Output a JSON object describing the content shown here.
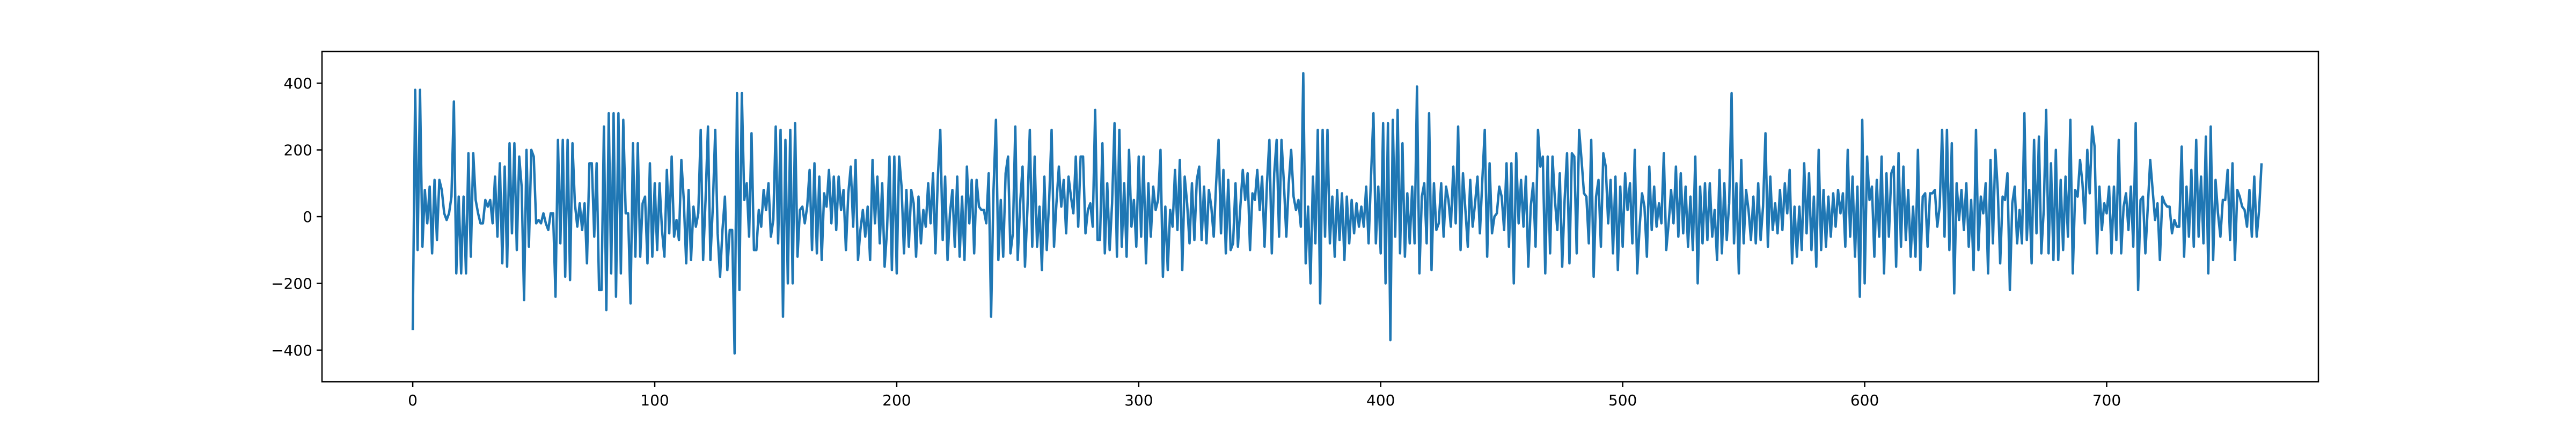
{
  "chart_data": {
    "type": "line",
    "title": "",
    "xlabel": "",
    "ylabel": "",
    "xlim": [
      -37.5,
      787.5
    ],
    "ylim": [
      -495,
      495
    ],
    "x_ticks": [
      0,
      100,
      200,
      300,
      400,
      500,
      600,
      700
    ],
    "y_ticks": [
      -400,
      -200,
      0,
      200,
      400
    ],
    "x_tick_labels": [
      "0",
      "100",
      "200",
      "300",
      "400",
      "500",
      "600",
      "700"
    ],
    "y_tick_labels": [
      "−400",
      "−200",
      "0",
      "200",
      "400"
    ],
    "grid": false,
    "legend": "none",
    "series": [
      {
        "color": "#1f77b4",
        "x_start": 0,
        "x_step": 1,
        "values": [
          -340,
          380,
          -100,
          380,
          -90,
          80,
          -20,
          90,
          -110,
          110,
          -70,
          110,
          80,
          10,
          -10,
          10,
          60,
          345,
          -170,
          60,
          -170,
          60,
          -170,
          190,
          -120,
          190,
          50,
          10,
          -20,
          -20,
          50,
          30,
          50,
          -20,
          120,
          -60,
          160,
          -140,
          150,
          -150,
          220,
          -50,
          220,
          -100,
          180,
          90,
          -250,
          200,
          -90,
          200,
          180,
          -20,
          -10,
          -20,
          10,
          -20,
          -40,
          10,
          10,
          -240,
          230,
          -80,
          230,
          -180,
          230,
          -190,
          220,
          40,
          -30,
          40,
          -40,
          40,
          -140,
          160,
          160,
          -60,
          160,
          -220,
          -220,
          270,
          -280,
          310,
          -170,
          310,
          -240,
          310,
          -170,
          290,
          10,
          10,
          -260,
          220,
          -120,
          220,
          -120,
          40,
          60,
          -140,
          160,
          -120,
          100,
          -100,
          100,
          -40,
          -120,
          140,
          -50,
          180,
          -60,
          -10,
          -70,
          170,
          50,
          -140,
          80,
          -130,
          30,
          -30,
          10,
          260,
          -130,
          50,
          270,
          -130,
          30,
          260,
          -50,
          -180,
          -40,
          60,
          -160,
          -40,
          -40,
          -410,
          370,
          -220,
          370,
          50,
          100,
          -60,
          250,
          -100,
          -100,
          20,
          -30,
          80,
          20,
          100,
          -60,
          -10,
          270,
          -80,
          260,
          -300,
          230,
          -200,
          260,
          -200,
          280,
          -120,
          20,
          30,
          -20,
          30,
          140,
          -100,
          160,
          -110,
          120,
          -130,
          70,
          30,
          140,
          -20,
          120,
          -40,
          120,
          20,
          80,
          -100,
          70,
          150,
          -30,
          170,
          -130,
          -40,
          20,
          -60,
          30,
          -130,
          170,
          -20,
          120,
          -80,
          100,
          -150,
          -40,
          180,
          -160,
          180,
          -170,
          180,
          90,
          -110,
          80,
          -90,
          80,
          40,
          -120,
          60,
          -80,
          20,
          -30,
          100,
          -20,
          130,
          -110,
          120,
          260,
          -70,
          120,
          -130,
          10,
          80,
          -90,
          120,
          -120,
          60,
          -130,
          150,
          -20,
          110,
          -110,
          110,
          30,
          20,
          20,
          -20,
          130,
          -300,
          80,
          290,
          -130,
          50,
          -120,
          130,
          180,
          -110,
          -50,
          270,
          -130,
          40,
          150,
          -150,
          20,
          260,
          -90,
          180,
          -90,
          30,
          -160,
          120,
          -100,
          50,
          260,
          -90,
          40,
          150,
          30,
          110,
          -50,
          120,
          60,
          10,
          180,
          -30,
          180,
          180,
          -50,
          20,
          40,
          -30,
          320,
          -70,
          -70,
          220,
          -110,
          100,
          -100,
          40,
          280,
          -120,
          260,
          -90,
          100,
          -120,
          200,
          -30,
          50,
          -90,
          180,
          -60,
          180,
          -140,
          100,
          -60,
          90,
          20,
          50,
          200,
          -180,
          30,
          -160,
          20,
          -30,
          140,
          -40,
          170,
          -160,
          120,
          40,
          -80,
          100,
          -70,
          110,
          150,
          -70,
          90,
          -80,
          80,
          30,
          -60,
          100,
          230,
          -50,
          140,
          -110,
          110,
          -100,
          -80,
          100,
          -90,
          30,
          140,
          50,
          130,
          -100,
          70,
          50,
          140,
          20,
          120,
          -90,
          100,
          230,
          -110,
          130,
          230,
          -60,
          230,
          100,
          -60,
          100,
          200,
          60,
          20,
          50,
          -30,
          430,
          -140,
          30,
          -200,
          120,
          -80,
          260,
          -260,
          260,
          -60,
          260,
          -80,
          60,
          -120,
          80,
          -70,
          70,
          -130,
          60,
          -80,
          50,
          -50,
          40,
          -30,
          30,
          -30,
          90,
          -80,
          120,
          310,
          -80,
          90,
          -110,
          280,
          -200,
          280,
          -370,
          290,
          -60,
          320,
          -110,
          220,
          -120,
          70,
          -80,
          90,
          -80,
          390,
          -170,
          60,
          100,
          -80,
          310,
          -160,
          100,
          -40,
          -20,
          100,
          -60,
          90,
          50,
          -30,
          150,
          -20,
          270,
          -100,
          130,
          20,
          -90,
          110,
          -30,
          40,
          120,
          -50,
          110,
          260,
          -120,
          160,
          -50,
          0,
          10,
          90,
          60,
          -40,
          160,
          -90,
          160,
          -200,
          190,
          -20,
          110,
          -30,
          120,
          -150,
          30,
          100,
          -90,
          260,
          150,
          180,
          -170,
          180,
          -110,
          180,
          50,
          -40,
          130,
          -150,
          50,
          190,
          -140,
          190,
          180,
          -110,
          260,
          170,
          70,
          60,
          -80,
          230,
          -180,
          60,
          110,
          -90,
          190,
          150,
          -20,
          110,
          -110,
          120,
          -160,
          90,
          -90,
          130,
          20,
          100,
          -80,
          200,
          -170,
          -30,
          70,
          30,
          -120,
          150,
          -40,
          90,
          -30,
          40,
          -20,
          190,
          -100,
          -20,
          80,
          -20,
          150,
          -60,
          130,
          -50,
          90,
          -90,
          60,
          -100,
          180,
          -200,
          90,
          -80,
          100,
          -70,
          100,
          -60,
          20,
          -130,
          140,
          -110,
          100,
          -70,
          40,
          370,
          -80,
          100,
          -170,
          170,
          -80,
          80,
          20,
          -70,
          60,
          -80,
          100,
          -70,
          30,
          250,
          -90,
          120,
          -40,
          40,
          -50,
          80,
          -40,
          100,
          10,
          140,
          -140,
          30,
          -120,
          30,
          -100,
          160,
          -50,
          130,
          -100,
          60,
          -150,
          200,
          -100,
          80,
          -90,
          60,
          -60,
          70,
          -30,
          80,
          10,
          70,
          -90,
          200,
          -60,
          120,
          -120,
          90,
          -240,
          290,
          -200,
          180,
          50,
          90,
          -120,
          110,
          -60,
          180,
          -170,
          130,
          -60,
          130,
          150,
          -150,
          190,
          -90,
          150,
          -70,
          80,
          -120,
          30,
          -120,
          200,
          -160,
          60,
          70,
          -90,
          70,
          70,
          80,
          -30,
          30,
          260,
          -60,
          260,
          -100,
          220,
          -230,
          100,
          -10,
          80,
          -40,
          100,
          -90,
          50,
          -160,
          260,
          -100,
          60,
          10,
          100,
          -170,
          170,
          -80,
          200,
          80,
          -140,
          60,
          50,
          130,
          -220,
          40,
          90,
          -80,
          20,
          -80,
          310,
          -70,
          80,
          -140,
          230,
          -50,
          240,
          -110,
          20,
          320,
          -110,
          160,
          -130,
          200,
          -130,
          110,
          -100,
          120,
          -60,
          290,
          -170,
          80,
          60,
          170,
          100,
          -20,
          200,
          70,
          270,
          210,
          -110,
          90,
          -40,
          40,
          10,
          90,
          -110,
          90,
          -70,
          230,
          -110,
          30,
          70,
          -40,
          90,
          -90,
          280,
          -220,
          50,
          60,
          -110,
          30,
          170,
          80,
          -10,
          40,
          -130,
          60,
          40,
          30,
          30,
          -50,
          -10,
          -30,
          -30,
          210,
          -120,
          90,
          -60,
          140,
          -90,
          230,
          -60,
          120,
          -80,
          240,
          -170,
          270,
          -130,
          110,
          10,
          -60,
          50,
          50,
          140,
          -70,
          160,
          -130,
          80,
          60,
          30,
          20,
          -30,
          80,
          -60,
          120,
          -60,
          20,
          160
        ]
      }
    ]
  }
}
